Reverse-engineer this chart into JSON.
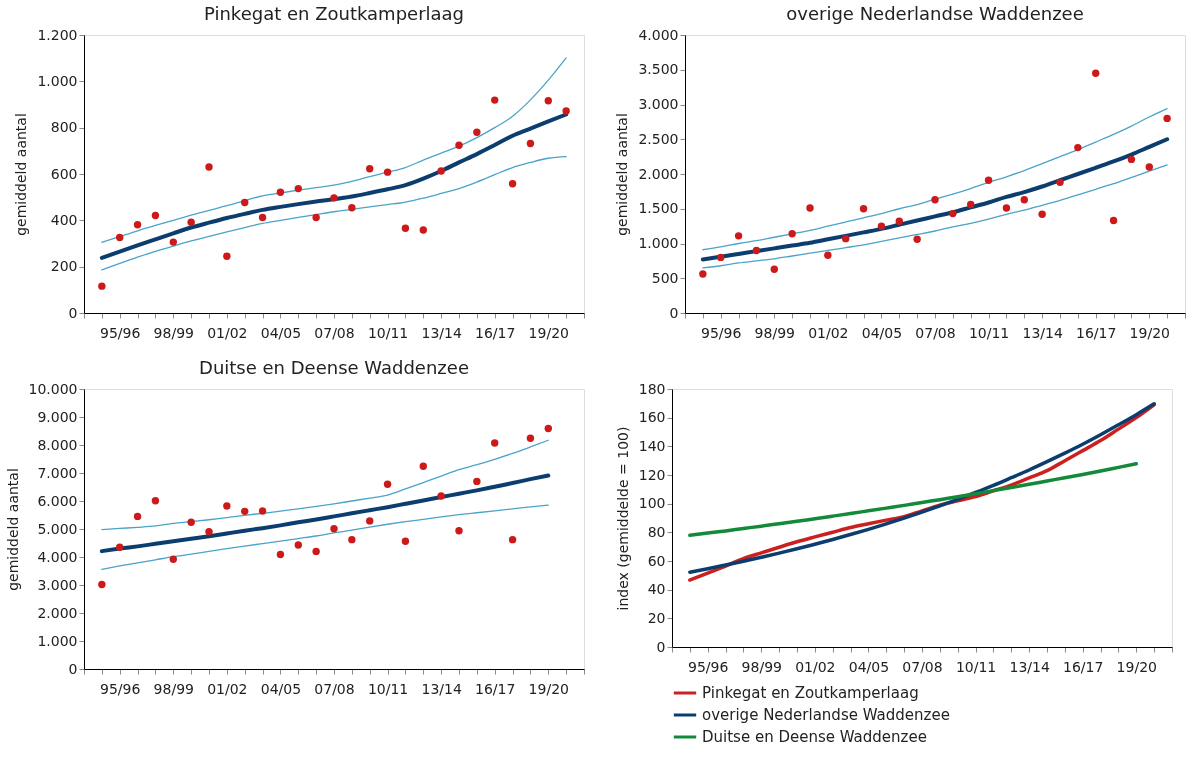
{
  "chart_data": [
    {
      "type": "line",
      "title": "Pinkegat en Zoutkamperlaag",
      "ylabel": "gemiddeld aantal",
      "categories": [
        null,
        "95/96",
        null,
        null,
        "98/99",
        null,
        null,
        "01/02",
        null,
        null,
        "04/05",
        null,
        null,
        "07/08",
        null,
        null,
        "10/11",
        null,
        null,
        "13/14",
        null,
        null,
        "16/17",
        null,
        null,
        "19/20",
        null
      ],
      "ylim": [
        0,
        1200
      ],
      "yticks": [
        0,
        200,
        400,
        600,
        800,
        {
          "value": 1000,
          "label": "1.000"
        },
        {
          "value": 1200,
          "label": "1.200"
        }
      ],
      "series": [
        {
          "type": "line",
          "color": "#0b3d6e",
          "values": [
            238,
            265,
            292,
            318,
            344,
            369,
            390,
            410,
            428,
            445,
            458,
            470,
            481,
            491,
            503,
            518,
            534,
            552,
            580,
            613,
            650,
            686,
            725,
            765,
            796,
            827,
            857
          ]
        },
        {
          "type": "line",
          "color": "#4aa3c9",
          "values": [
            186,
            214,
            241,
            266,
            289,
            311,
            331,
            350,
            369,
            387,
            400,
            413,
            425,
            437,
            447,
            458,
            468,
            479,
            496,
            516,
            537,
            565,
            597,
            628,
            650,
            668,
            675
          ]
        },
        {
          "type": "line",
          "color": "#4aa3c9",
          "values": [
            305,
            330,
            355,
            378,
            400,
            422,
            443,
            463,
            485,
            506,
            518,
            530,
            541,
            552,
            568,
            589,
            608,
            628,
            660,
            690,
            720,
            757,
            800,
            849,
            920,
            1005,
            1101
          ]
        },
        {
          "type": "scatter",
          "color": "#cc1a1a",
          "values": [
            116,
            326,
            381,
            421,
            306,
            392,
            630,
            245,
            477,
            412,
            521,
            537,
            412,
            497,
            454,
            623,
            608,
            366,
            358,
            613,
            724,
            780,
            919,
            558,
            732,
            916,
            872
          ]
        }
      ]
    },
    {
      "type": "line",
      "title": "overige Nederlandse Waddenzee",
      "ylabel": "gemiddeld aantal",
      "categories": [
        null,
        "95/96",
        null,
        null,
        "98/99",
        null,
        null,
        "01/02",
        null,
        null,
        "04/05",
        null,
        null,
        "07/08",
        null,
        null,
        "10/11",
        null,
        null,
        "13/14",
        null,
        null,
        "16/17",
        null,
        null,
        "19/20",
        null
      ],
      "ylim": [
        0,
        4000
      ],
      "yticks": [
        0,
        500,
        {
          "value": 1000,
          "label": "1.000"
        },
        {
          "value": 1500,
          "label": "1.500"
        },
        {
          "value": 2000,
          "label": "2.000"
        },
        {
          "value": 2500,
          "label": "2.500"
        },
        {
          "value": 3000,
          "label": "3.000"
        },
        {
          "value": 3500,
          "label": "3.500"
        },
        {
          "value": 4000,
          "label": "4.000"
        }
      ],
      "series": [
        {
          "type": "line",
          "color": "#0b3d6e",
          "values": [
            770,
            810,
            850,
            890,
            930,
            970,
            1010,
            1060,
            1110,
            1160,
            1210,
            1270,
            1330,
            1390,
            1450,
            1520,
            1590,
            1670,
            1740,
            1820,
            1910,
            2000,
            2090,
            2180,
            2280,
            2390,
            2500
          ]
        },
        {
          "type": "line",
          "color": "#4aa3c9",
          "values": [
            650,
            680,
            720,
            750,
            780,
            820,
            860,
            900,
            940,
            980,
            1030,
            1080,
            1130,
            1180,
            1240,
            1290,
            1350,
            1420,
            1480,
            1550,
            1620,
            1700,
            1780,
            1860,
            1950,
            2040,
            2130
          ]
        },
        {
          "type": "line",
          "color": "#4aa3c9",
          "values": [
            910,
            950,
            1000,
            1040,
            1090,
            1140,
            1190,
            1250,
            1310,
            1370,
            1430,
            1500,
            1560,
            1640,
            1710,
            1790,
            1880,
            1960,
            2050,
            2150,
            2250,
            2350,
            2460,
            2570,
            2690,
            2820,
            2940
          ]
        },
        {
          "type": "scatter",
          "color": "#cc1a1a",
          "values": [
            560,
            800,
            1110,
            900,
            630,
            1140,
            1510,
            830,
            1070,
            1500,
            1250,
            1320,
            1060,
            1630,
            1430,
            1560,
            1910,
            1510,
            1630,
            1420,
            1880,
            2380,
            3450,
            1330,
            2210,
            2100,
            2800
          ]
        }
      ]
    },
    {
      "type": "line",
      "title": "Duitse en Deense Waddenzee",
      "ylabel": "gemiddeld aantal",
      "categories": [
        null,
        "95/96",
        null,
        null,
        "98/99",
        null,
        null,
        "01/02",
        null,
        null,
        "04/05",
        null,
        null,
        "07/08",
        null,
        null,
        "10/11",
        null,
        null,
        "13/14",
        null,
        null,
        "16/17",
        null,
        null,
        "19/20",
        null
      ],
      "ylim": [
        0,
        10000
      ],
      "yticks": [
        0,
        {
          "value": 1000,
          "label": "1.000"
        },
        {
          "value": 2000,
          "label": "2.000"
        },
        {
          "value": 3000,
          "label": "3.000"
        },
        {
          "value": 4000,
          "label": "4.000"
        },
        {
          "value": 5000,
          "label": "5.000"
        },
        {
          "value": 6000,
          "label": "6.000"
        },
        {
          "value": 7000,
          "label": "7.000"
        },
        {
          "value": 8000,
          "label": "8.000"
        },
        {
          "value": 9000,
          "label": "9.000"
        },
        {
          "value": 10000,
          "label": "10.000"
        }
      ],
      "series": [
        {
          "type": "line",
          "color": "#0b3d6e",
          "values": [
            4210,
            4300,
            4380,
            4470,
            4560,
            4650,
            4740,
            4840,
            4940,
            5030,
            5130,
            5240,
            5340,
            5450,
            5560,
            5670,
            5780,
            5900,
            6020,
            6140,
            6260,
            6380,
            6510,
            6640,
            6780,
            6910,
            null
          ]
        },
        {
          "type": "line",
          "color": "#4aa3c9",
          "values": [
            3560,
            3680,
            3790,
            3900,
            4010,
            4100,
            4200,
            4300,
            4390,
            4480,
            4570,
            4660,
            4750,
            4860,
            4960,
            5070,
            5170,
            5260,
            5340,
            5430,
            5510,
            5580,
            5650,
            5720,
            5790,
            5850,
            null
          ]
        },
        {
          "type": "line",
          "color": "#4aa3c9",
          "values": [
            4980,
            5020,
            5060,
            5110,
            5200,
            5260,
            5330,
            5410,
            5490,
            5560,
            5640,
            5720,
            5810,
            5900,
            6000,
            6100,
            6210,
            6430,
            6660,
            6890,
            7120,
            7300,
            7490,
            7700,
            7930,
            8170,
            null
          ]
        },
        {
          "type": "scatter",
          "color": "#cc1a1a",
          "values": [
            3020,
            4350,
            5450,
            6010,
            3920,
            5240,
            4900,
            5820,
            5630,
            5640,
            4090,
            4430,
            4200,
            5010,
            4620,
            5290,
            6600,
            4560,
            7240,
            6180,
            4940,
            6700,
            8070,
            4620,
            8240,
            8590,
            null
          ]
        }
      ]
    },
    {
      "type": "line",
      "ylabel": "index (gemiddelde = 100)",
      "legend": "bottom",
      "categories": [
        null,
        "95/96",
        null,
        null,
        "98/99",
        null,
        null,
        "01/02",
        null,
        null,
        "04/05",
        null,
        null,
        "07/08",
        null,
        null,
        "10/11",
        null,
        null,
        "13/14",
        null,
        null,
        "16/17",
        null,
        null,
        "19/20",
        null
      ],
      "ylim": [
        0,
        180
      ],
      "yticks": [
        0,
        20,
        40,
        60,
        80,
        100,
        120,
        140,
        160,
        180
      ],
      "series": [
        {
          "name": "Pinkegat en Zoutkamperlaag",
          "color": "#cc1f1f",
          "values": [
            46.7,
            51.5,
            56.5,
            61.7,
            65.7,
            69.6,
            73.4,
            76.8,
            80.1,
            83.4,
            86,
            88.5,
            90.9,
            95,
            99,
            102,
            105,
            109,
            113,
            118,
            123,
            130,
            137,
            144,
            152,
            160,
            169
          ]
        },
        {
          "name": "overige Nederlandse Waddenzee",
          "color": "#0b3d6e",
          "values": [
            52.2,
            54.6,
            57.2,
            59.8,
            62.6,
            65.5,
            68.5,
            71.7,
            75.0,
            78.5,
            82.1,
            85.9,
            89.9,
            94.1,
            98.5,
            103.0,
            107.8,
            112.8,
            118.1,
            123.5,
            129.3,
            135.3,
            141.5,
            148.1,
            155.0,
            162.1,
            169.7
          ]
        },
        {
          "name": "Duitse en Deense Waddenzee",
          "color": "#138a3a",
          "values": [
            77.9,
            79.5,
            81.0,
            82.7,
            84.3,
            86.0,
            87.7,
            89.5,
            91.3,
            93.1,
            95.0,
            96.9,
            98.8,
            100.8,
            102.8,
            104.8,
            106.9,
            109.1,
            111.3,
            113.5,
            115.8,
            118.1,
            120.4,
            122.8,
            125.3,
            127.8,
            null
          ]
        }
      ]
    }
  ]
}
